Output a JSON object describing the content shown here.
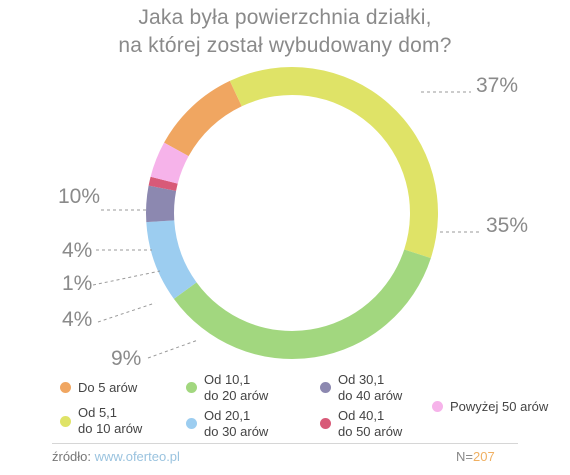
{
  "title_line_1": "Jaka była powierzchnia działki,",
  "title_line_2": "na której został wybudowany dom?",
  "chart_data": {
    "type": "pie",
    "variant": "donut",
    "title": "Jaka była powierzchnia działki, na której został wybudowany dom?",
    "series": [
      {
        "name": "Do 5 arów",
        "value": 10,
        "label": "10%",
        "color": "#f0a661"
      },
      {
        "name": "Od 5,1 do 10 arów",
        "value": 37,
        "label": "37%",
        "color": "#dfe367"
      },
      {
        "name": "Od 10,1 do 20 arów",
        "value": 35,
        "label": "35%",
        "color": "#a2d77f"
      },
      {
        "name": "Od 20,1 do 30 arów",
        "value": 9,
        "label": "9%",
        "color": "#9ccdf0"
      },
      {
        "name": "Od 30,1 do 40 arów",
        "value": 4,
        "label": "4%",
        "color": "#8c88b0"
      },
      {
        "name": "Od 40,1 do 50 arów",
        "value": 1,
        "label": "1%",
        "color": "#d85a78"
      },
      {
        "name": "Powyżej 50 arów",
        "value": 4,
        "label": "4%",
        "color": "#f6b3ea"
      }
    ]
  },
  "legend": [
    {
      "line1": "Do 5 arów",
      "line2": "",
      "color": "#f0a661"
    },
    {
      "line1": "Od 5,1",
      "line2": "do 10 arów",
      "color": "#dfe367"
    },
    {
      "line1": "Od 10,1",
      "line2": "do 20 arów",
      "color": "#a2d77f"
    },
    {
      "line1": "Od 20,1",
      "line2": "do 30 arów",
      "color": "#9ccdf0"
    },
    {
      "line1": "Od 30,1",
      "line2": "do 40 arów",
      "color": "#8c88b0"
    },
    {
      "line1": "Od 40,1",
      "line2": "do 50 arów",
      "color": "#d85a78"
    },
    {
      "line1": "Powyżej 50 arów",
      "line2": "",
      "color": "#f6b3ea"
    }
  ],
  "footer": {
    "source_label": "źródło:",
    "source_url": "www.oferteo.pl",
    "n_label": "N=",
    "n_value": "207"
  }
}
